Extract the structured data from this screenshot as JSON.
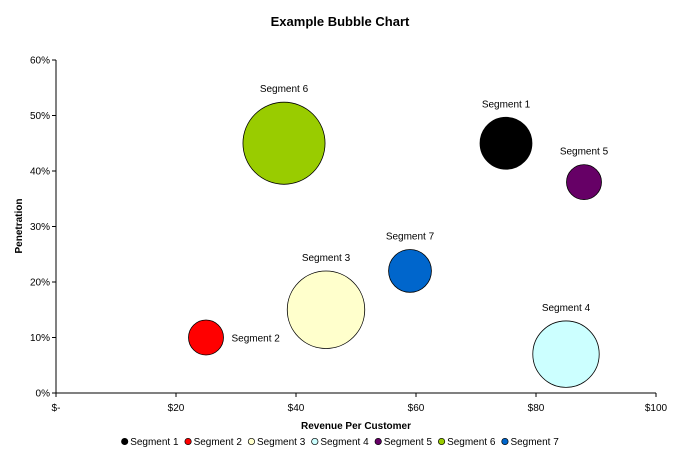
{
  "chart_data": {
    "type": "bubble",
    "title": "Example Bubble Chart",
    "xlabel": "Revenue Per Customer",
    "ylabel": "Penetration",
    "xlim": [
      0,
      100
    ],
    "ylim": [
      0,
      60
    ],
    "x_ticks": [
      "$-",
      "$20",
      "$40",
      "$60",
      "$80",
      "$100"
    ],
    "y_ticks": [
      "0%",
      "10%",
      "20%",
      "30%",
      "40%",
      "50%",
      "60%"
    ],
    "grid": false,
    "legend_position": "bottom",
    "series": [
      {
        "name": "Segment 1",
        "x": 75,
        "y": 45,
        "size": 2.2,
        "color": "#000000",
        "label_pos": "top"
      },
      {
        "name": "Segment 2",
        "x": 25,
        "y": 10,
        "size": 1.0,
        "color": "#ff0000",
        "label_pos": "right"
      },
      {
        "name": "Segment 3",
        "x": 45,
        "y": 15,
        "size": 4.9,
        "color": "#ffffcc",
        "label_pos": "top"
      },
      {
        "name": "Segment 4",
        "x": 85,
        "y": 7,
        "size": 3.6,
        "color": "#ccffff",
        "label_pos": "top"
      },
      {
        "name": "Segment 5",
        "x": 88,
        "y": 38,
        "size": 1.0,
        "color": "#660066",
        "label_pos": "top"
      },
      {
        "name": "Segment 6",
        "x": 38,
        "y": 45,
        "size": 5.5,
        "color": "#99cc00",
        "label_pos": "top"
      },
      {
        "name": "Segment 7",
        "x": 59,
        "y": 22,
        "size": 1.5,
        "color": "#0066cc",
        "label_pos": "top"
      }
    ]
  }
}
